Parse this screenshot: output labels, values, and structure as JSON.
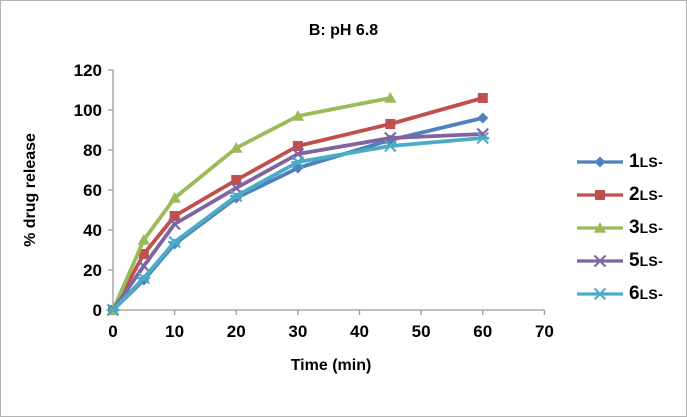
{
  "figure": {
    "background": "#ffffff",
    "border_color": "#b3b3b3",
    "axis_color": "#9a9a9a",
    "text_color": "#000000"
  },
  "chart_data": {
    "type": "line",
    "title": "B: pH 6.8",
    "xlabel": "Time (min)",
    "ylabel": "% drug release",
    "grid": false,
    "legend_position": "right",
    "xlim": [
      0,
      70
    ],
    "ylim": [
      0,
      120
    ],
    "x_ticks": [
      0,
      10,
      20,
      30,
      40,
      50,
      60,
      70
    ],
    "y_ticks": [
      0,
      20,
      40,
      60,
      80,
      100,
      120
    ],
    "x": [
      0,
      5,
      10,
      20,
      30,
      45,
      60
    ],
    "series": [
      {
        "name": "1LS-",
        "label_num": "1",
        "label_suffix": "LS-",
        "color": "#4F81BD",
        "marker": "diamond",
        "values": [
          0,
          15,
          33,
          56,
          71,
          85,
          96
        ]
      },
      {
        "name": "2LS-",
        "label_num": "2",
        "label_suffix": "LS-",
        "color": "#C0504D",
        "marker": "square",
        "values": [
          0,
          28,
          47,
          65,
          82,
          93,
          106
        ]
      },
      {
        "name": "3LS-",
        "label_num": "3",
        "label_suffix": "LS-",
        "color": "#9BBB59",
        "marker": "triangle",
        "values": [
          0,
          35,
          56,
          81,
          97,
          106
        ]
      },
      {
        "name": "5LS-",
        "label_num": "5",
        "label_suffix": "LS-",
        "color": "#8064A2",
        "marker": "x",
        "values": [
          0,
          22,
          43,
          61,
          78,
          86,
          88
        ]
      },
      {
        "name": "6LS-",
        "label_num": "6",
        "label_suffix": "LS-",
        "color": "#4BACC6",
        "marker": "star",
        "values": [
          0,
          16,
          34,
          57,
          74,
          82,
          86
        ]
      }
    ]
  }
}
